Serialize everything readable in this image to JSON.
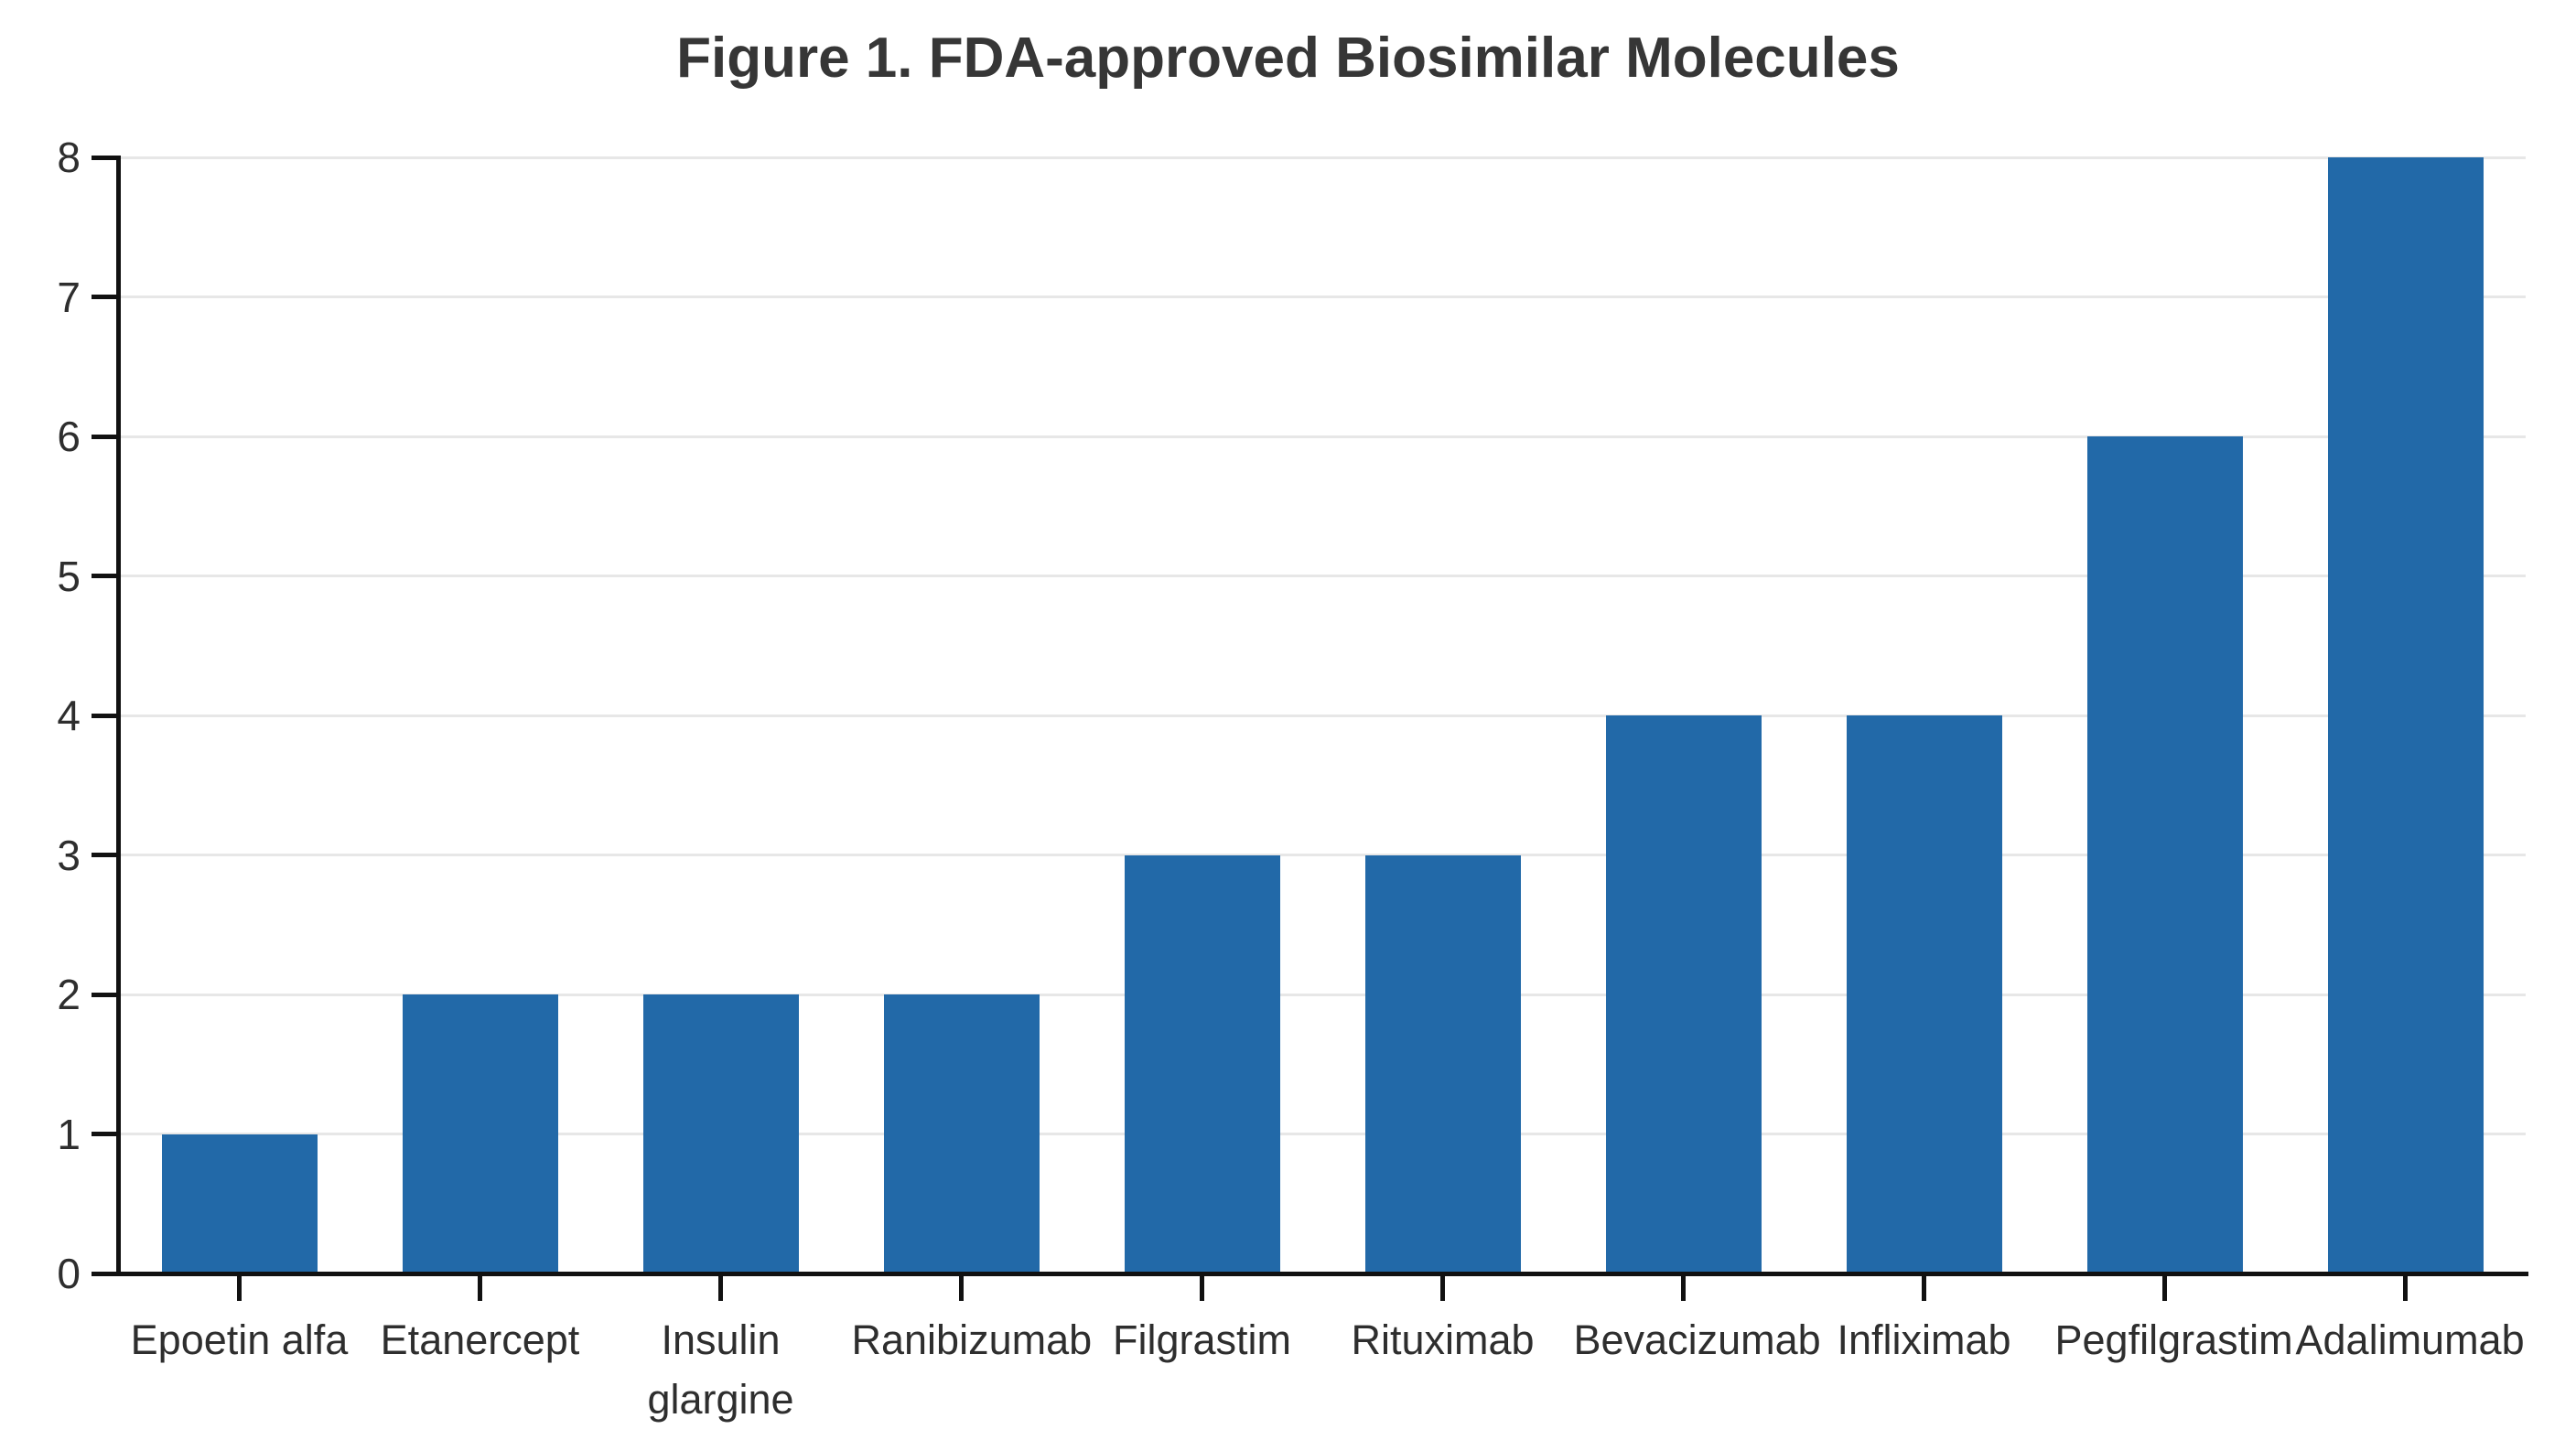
{
  "title": "Figure 1. FDA-approved Biosimilar Molecules",
  "chart_data": {
    "type": "bar",
    "title": "Figure 1. FDA-approved Biosimilar Molecules",
    "categories": [
      "Epoetin alfa",
      "Etanercept",
      "Insulin glargine",
      "Ranibizumab",
      "Filgrastim",
      "Rituximab",
      "Bevacizumab",
      "Infliximab",
      "Pegfilgrastim",
      "Adalimumab"
    ],
    "values": [
      1,
      2,
      2,
      2,
      3,
      3,
      4,
      4,
      6,
      8
    ],
    "xlabel": "",
    "ylabel": "",
    "ylim": [
      0,
      8
    ],
    "ytick_step": 1,
    "yticks": [
      "0",
      "1",
      "2",
      "3",
      "4",
      "5",
      "6",
      "7",
      "8"
    ],
    "grid": true,
    "legend_position": "none",
    "bar_color": "#2269a8",
    "gridline_color": "#e7e7e7",
    "axis_color": "#111111",
    "text_color": "#2e2e2e",
    "title_color": "#363636",
    "background_color": "#ffffff"
  }
}
